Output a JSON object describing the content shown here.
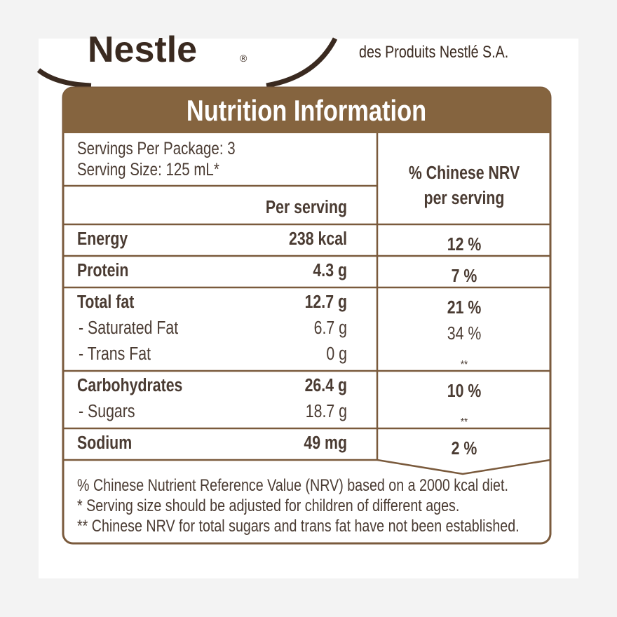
{
  "header": {
    "brand": "Nestle",
    "registered": "®",
    "tagline": "des Produits Nestlé S.A."
  },
  "panel": {
    "title": "Nutrition Information",
    "servings_per_package": "Servings Per Package: 3",
    "serving_size": "Serving Size: 125 mL*",
    "amount_header": "Per serving",
    "nrv_header": [
      "% Chinese NRV",
      "per serving"
    ],
    "groups": [
      [
        [
          "Energy",
          "238 kcal",
          "12 %"
        ]
      ],
      [
        [
          "Protein",
          "4.3 g",
          "7 %"
        ]
      ],
      [
        [
          "Total fat",
          "12.7 g",
          "21 %"
        ],
        [
          "- Saturated Fat",
          "6.7 g",
          "34 %"
        ],
        [
          "- Trans Fat",
          "0 g",
          "**"
        ]
      ],
      [
        [
          "Carbohydrates",
          "26.4 g",
          "10 %"
        ],
        [
          "- Sugars",
          "18.7 g",
          "**"
        ]
      ],
      [
        [
          "Sodium",
          "49 mg",
          "2 %"
        ]
      ]
    ],
    "footnotes": [
      "% Chinese Nutrient Reference Value (NRV) based on a 2000 kcal diet.",
      "*  Serving size should be adjusted for children of different ages.",
      "** Chinese NRV for total sugars and trans fat have not been established."
    ]
  }
}
